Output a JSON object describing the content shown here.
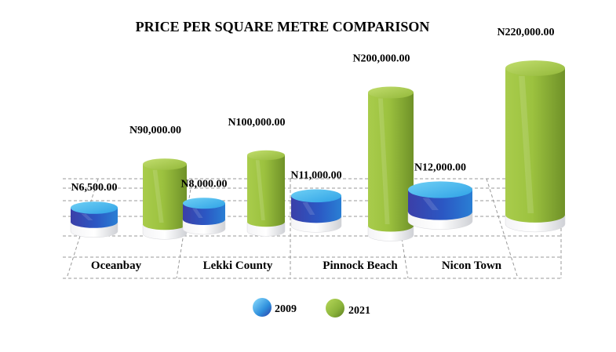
{
  "chart_data": {
    "type": "bar",
    "title": "PRICE PER SQUARE METRE COMPARISON",
    "categories": [
      "Oceanbay",
      "Lekki County",
      "Pinnock Beach",
      "Nicon Town"
    ],
    "series": [
      {
        "name": "2009",
        "values": [
          6500,
          8000,
          11000,
          12000
        ],
        "labels": [
          "N6,500.00",
          "N8,000.00",
          "N11,000.00",
          "N12,000.00"
        ]
      },
      {
        "name": "2021",
        "values": [
          90000,
          100000,
          200000,
          220000
        ],
        "labels": [
          "N90,000.00",
          "N100,000.00",
          "N200,000.00",
          "N220,000.00"
        ]
      }
    ],
    "colors": {
      "2009": "#2f8fdc",
      "2021": "#8ab33a"
    },
    "legend_position": "bottom",
    "grid": true,
    "style": "3d-cylinder"
  }
}
